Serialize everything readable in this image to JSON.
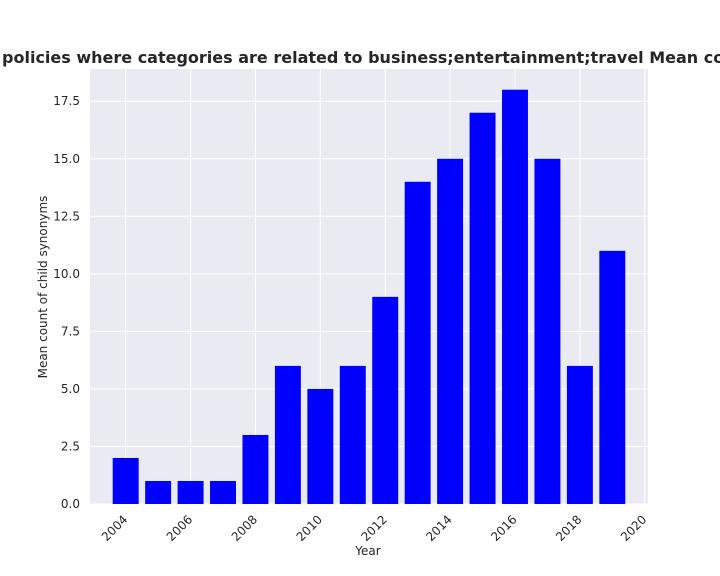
{
  "chart_data": {
    "type": "bar",
    "title": "Mean count of child synonyms in privacy policies where categories are related to business;entertainment;travel Mean count of child synonyms in privacy policies",
    "xlabel": "Year",
    "ylabel": "Mean count of child synonyms",
    "x": [
      2004,
      2005,
      2006,
      2007,
      2008,
      2009,
      2010,
      2011,
      2012,
      2013,
      2014,
      2015,
      2016,
      2017,
      2018,
      2019
    ],
    "values": [
      2,
      1,
      1,
      1,
      3,
      6,
      5,
      6,
      9,
      14,
      15,
      17,
      18,
      15,
      6,
      11
    ],
    "xlim": [
      2002.9,
      2020.1
    ],
    "ylim": [
      0,
      18.9
    ],
    "xticks": [
      2004,
      2006,
      2008,
      2010,
      2012,
      2014,
      2016,
      2018,
      2020
    ],
    "yticks": [
      "0.0",
      "2.5",
      "5.0",
      "7.5",
      "10.0",
      "12.5",
      "15.0",
      "17.5"
    ],
    "grid": true,
    "colors": {
      "bar": "#0000ff",
      "plot_background": "#eaeaf2",
      "grid": "#ffffff"
    }
  }
}
